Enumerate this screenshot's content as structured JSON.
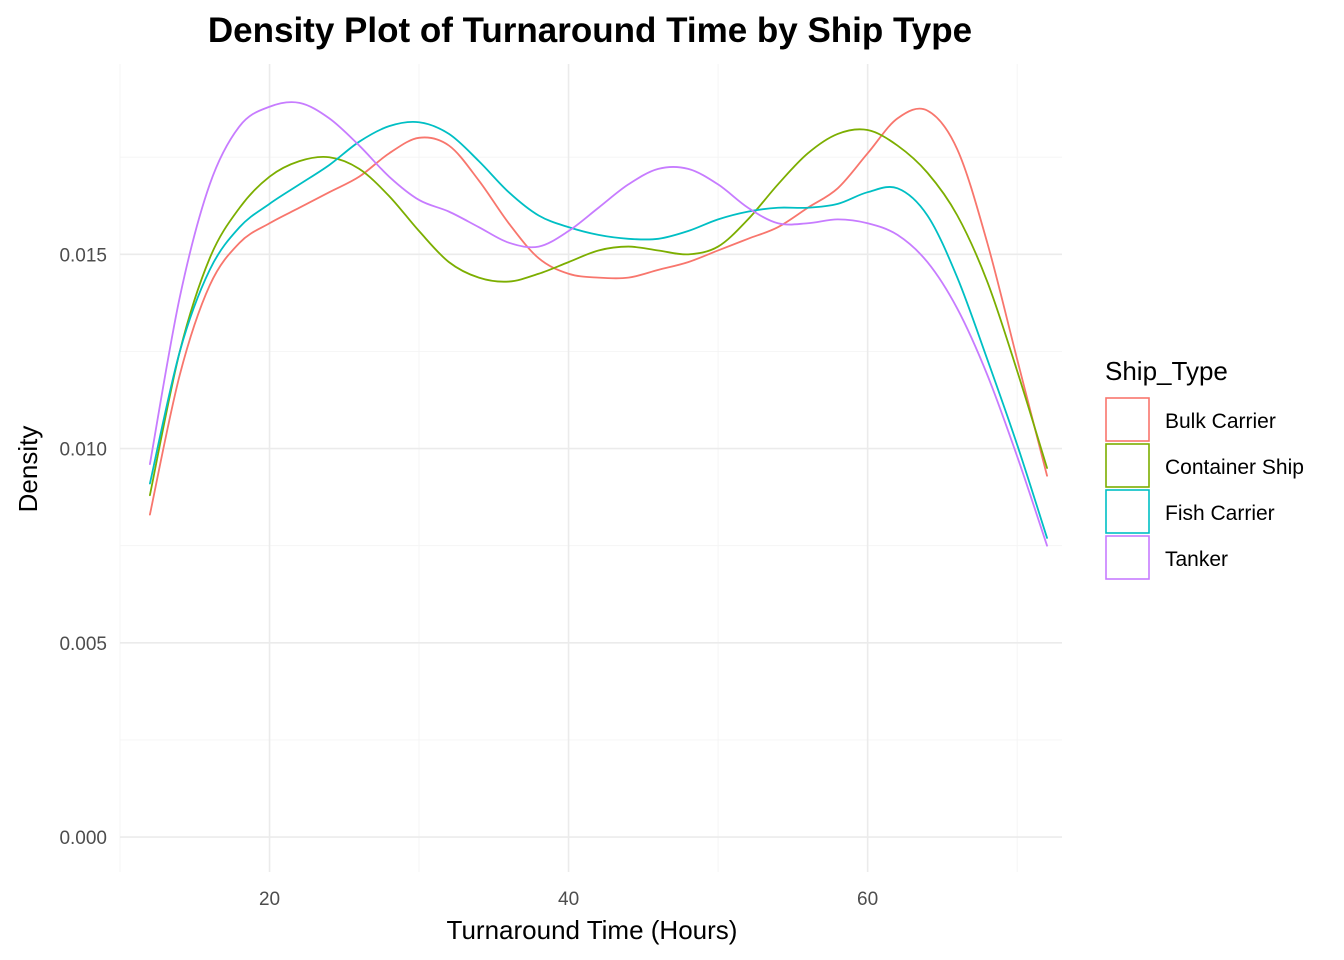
{
  "chart_data": {
    "type": "line",
    "title": "Density Plot of Turnaround Time by Ship Type",
    "xlabel": "Turnaround Time (Hours)",
    "ylabel": "Density",
    "xlim": [
      10,
      73
    ],
    "ylim": [
      -0.0009,
      0.0199
    ],
    "x_ticks": [
      20,
      40,
      60
    ],
    "x_tick_labels": [
      "20",
      "40",
      "60"
    ],
    "x_minor_ticks": [
      10,
      30,
      50,
      70
    ],
    "y_ticks": [
      0.0,
      0.005,
      0.01,
      0.015
    ],
    "y_tick_labels": [
      "0.000",
      "0.005",
      "0.010",
      "0.015"
    ],
    "y_minor_ticks": [
      0.0025,
      0.0075,
      0.0125,
      0.0175
    ],
    "grid": true,
    "legend": {
      "title": "Ship_Type",
      "position": "right"
    },
    "series": [
      {
        "name": "Bulk Carrier",
        "color": "#F8766D",
        "points": [
          [
            12,
            0.0083
          ],
          [
            14,
            0.0119
          ],
          [
            16,
            0.0142
          ],
          [
            18,
            0.0153
          ],
          [
            20,
            0.0158
          ],
          [
            22,
            0.0162
          ],
          [
            24,
            0.0166
          ],
          [
            26,
            0.017
          ],
          [
            28,
            0.0176
          ],
          [
            30,
            0.018
          ],
          [
            32,
            0.0178
          ],
          [
            34,
            0.0169
          ],
          [
            36,
            0.0158
          ],
          [
            38,
            0.0149
          ],
          [
            40,
            0.0145
          ],
          [
            42,
            0.0144
          ],
          [
            44,
            0.0144
          ],
          [
            46,
            0.0146
          ],
          [
            48,
            0.0148
          ],
          [
            50,
            0.0151
          ],
          [
            52,
            0.0154
          ],
          [
            54,
            0.0157
          ],
          [
            56,
            0.0162
          ],
          [
            58,
            0.0167
          ],
          [
            60,
            0.0176
          ],
          [
            62,
            0.0185
          ],
          [
            64,
            0.0187
          ],
          [
            66,
            0.0177
          ],
          [
            68,
            0.0153
          ],
          [
            70,
            0.0123
          ],
          [
            72,
            0.0093
          ]
        ]
      },
      {
        "name": "Container Ship",
        "color": "#7CAE00",
        "points": [
          [
            12,
            0.0088
          ],
          [
            14,
            0.0125
          ],
          [
            16,
            0.0149
          ],
          [
            18,
            0.0162
          ],
          [
            20,
            0.017
          ],
          [
            22,
            0.0174
          ],
          [
            24,
            0.0175
          ],
          [
            26,
            0.0172
          ],
          [
            28,
            0.0165
          ],
          [
            30,
            0.0156
          ],
          [
            32,
            0.0148
          ],
          [
            34,
            0.0144
          ],
          [
            36,
            0.0143
          ],
          [
            38,
            0.0145
          ],
          [
            40,
            0.0148
          ],
          [
            42,
            0.0151
          ],
          [
            44,
            0.0152
          ],
          [
            46,
            0.0151
          ],
          [
            48,
            0.015
          ],
          [
            50,
            0.0152
          ],
          [
            52,
            0.0159
          ],
          [
            54,
            0.0168
          ],
          [
            56,
            0.0176
          ],
          [
            58,
            0.0181
          ],
          [
            60,
            0.0182
          ],
          [
            62,
            0.0178
          ],
          [
            64,
            0.0171
          ],
          [
            66,
            0.016
          ],
          [
            68,
            0.0143
          ],
          [
            70,
            0.012
          ],
          [
            72,
            0.0095
          ]
        ]
      },
      {
        "name": "Fish Carrier",
        "color": "#00BFC4",
        "points": [
          [
            12,
            0.0091
          ],
          [
            14,
            0.0125
          ],
          [
            16,
            0.0146
          ],
          [
            18,
            0.0157
          ],
          [
            20,
            0.0163
          ],
          [
            22,
            0.0168
          ],
          [
            24,
            0.0173
          ],
          [
            26,
            0.0179
          ],
          [
            28,
            0.0183
          ],
          [
            30,
            0.0184
          ],
          [
            32,
            0.0181
          ],
          [
            34,
            0.0174
          ],
          [
            36,
            0.0166
          ],
          [
            38,
            0.016
          ],
          [
            40,
            0.0157
          ],
          [
            42,
            0.0155
          ],
          [
            44,
            0.0154
          ],
          [
            46,
            0.0154
          ],
          [
            48,
            0.0156
          ],
          [
            50,
            0.0159
          ],
          [
            52,
            0.0161
          ],
          [
            54,
            0.0162
          ],
          [
            56,
            0.0162
          ],
          [
            58,
            0.0163
          ],
          [
            60,
            0.0166
          ],
          [
            62,
            0.0167
          ],
          [
            64,
            0.016
          ],
          [
            66,
            0.0144
          ],
          [
            68,
            0.0123
          ],
          [
            70,
            0.0101
          ],
          [
            72,
            0.0077
          ]
        ]
      },
      {
        "name": "Tanker",
        "color": "#C77CFF",
        "points": [
          [
            12,
            0.0096
          ],
          [
            14,
            0.0139
          ],
          [
            16,
            0.0168
          ],
          [
            18,
            0.0183
          ],
          [
            20,
            0.0188
          ],
          [
            22,
            0.0189
          ],
          [
            24,
            0.0185
          ],
          [
            26,
            0.0178
          ],
          [
            28,
            0.017
          ],
          [
            30,
            0.0164
          ],
          [
            32,
            0.0161
          ],
          [
            34,
            0.0157
          ],
          [
            36,
            0.0153
          ],
          [
            38,
            0.0152
          ],
          [
            40,
            0.0156
          ],
          [
            42,
            0.0162
          ],
          [
            44,
            0.0168
          ],
          [
            46,
            0.0172
          ],
          [
            48,
            0.0172
          ],
          [
            50,
            0.0168
          ],
          [
            52,
            0.0162
          ],
          [
            54,
            0.0158
          ],
          [
            56,
            0.0158
          ],
          [
            58,
            0.0159
          ],
          [
            60,
            0.0158
          ],
          [
            62,
            0.0155
          ],
          [
            64,
            0.0148
          ],
          [
            66,
            0.0136
          ],
          [
            68,
            0.0119
          ],
          [
            70,
            0.0098
          ],
          [
            72,
            0.0075
          ]
        ]
      }
    ]
  }
}
